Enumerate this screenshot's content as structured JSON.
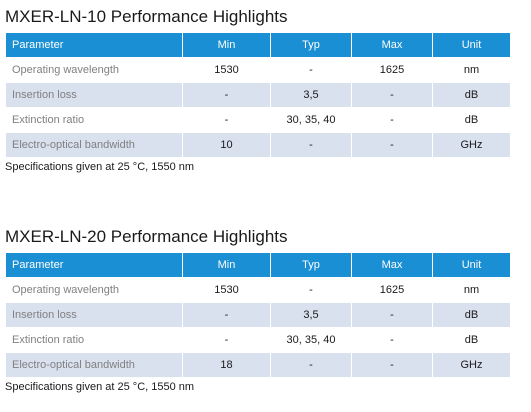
{
  "tables": [
    {
      "title": "MXER-LN-10 Performance Highlights",
      "headers": [
        "Parameter",
        "Min",
        "Typ",
        "Max",
        "Unit"
      ],
      "rows": [
        [
          "Operating wavelength",
          "1530",
          "-",
          "1625",
          "nm"
        ],
        [
          "Insertion loss",
          "-",
          "3,5",
          "-",
          "dB"
        ],
        [
          "Extinction ratio",
          "-",
          "30, 35, 40",
          "-",
          "dB"
        ],
        [
          "Electro-optical bandwidth",
          "10",
          "-",
          "-",
          "GHz"
        ]
      ],
      "note": "Specifications given at 25 °C, 1550 nm"
    },
    {
      "title": "MXER-LN-20 Performance Highlights",
      "headers": [
        "Parameter",
        "Min",
        "Typ",
        "Max",
        "Unit"
      ],
      "rows": [
        [
          "Operating wavelength",
          "1530",
          "-",
          "1625",
          "nm"
        ],
        [
          "Insertion loss",
          "-",
          "3,5",
          "-",
          "dB"
        ],
        [
          "Extinction ratio",
          "-",
          "30, 35, 40",
          "-",
          "dB"
        ],
        [
          "Electro-optical bandwidth",
          "18",
          "-",
          "-",
          "GHz"
        ]
      ],
      "note": "Specifications given at 25 °C, 1550 nm"
    }
  ],
  "colors": {
    "header_bg": "#1b8fd4",
    "row_alt_bg": "#d9e0ee",
    "param_text": "#808080"
  }
}
